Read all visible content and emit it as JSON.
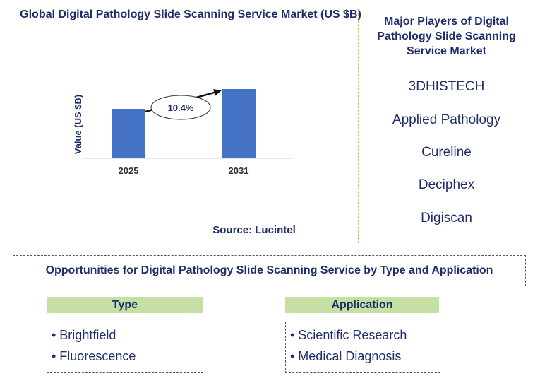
{
  "chart_data": {
    "type": "bar",
    "title": "Global Digital Pathology Slide Scanning Service Market (US $B)",
    "categories": [
      "2025",
      "2031"
    ],
    "values": [
      1.0,
      1.4
    ],
    "ylabel": "Value (US $B)",
    "xlabel": "",
    "ylim": [
      0,
      1.5
    ],
    "annotation": "10.4%",
    "bar_color": "#4472c4"
  },
  "source": "Source: Lucintel",
  "players": {
    "title": "Major Players of Digital Pathology Slide Scanning Service Market",
    "items": [
      "3DHISTECH",
      "Applied Pathology",
      "Cureline",
      "Deciphex",
      "Digiscan"
    ]
  },
  "opportunities": {
    "title": "Opportunities for Digital Pathology Slide Scanning Service by Type and Application",
    "type": {
      "label": "Type",
      "items": [
        "• Brightfield",
        "• Fluorescence"
      ]
    },
    "application": {
      "label": "Application",
      "items": [
        "• Scientific Research",
        "• Medical Diagnosis"
      ]
    }
  }
}
